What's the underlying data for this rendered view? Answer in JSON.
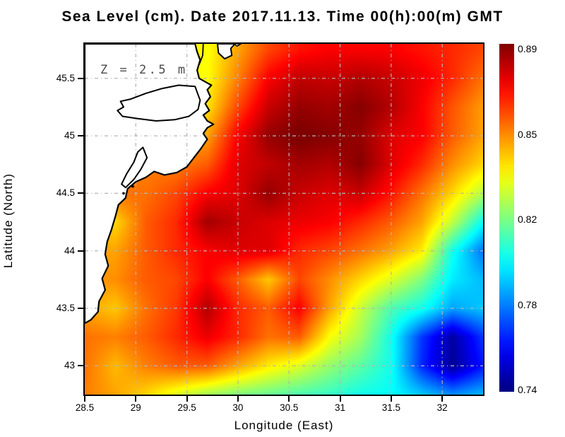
{
  "title": "Sea Level (cm). Date 2017.11.13. Time 00(h):00(m) GMT",
  "annotation": "Z = 2.5 m",
  "axes": {
    "x_label": "Longitude (East)",
    "y_label": "Latitude (North)",
    "x_tick_labels": [
      "28.5",
      "29",
      "29.5",
      "30",
      "30.5",
      "31",
      "31.5",
      "32"
    ],
    "x_tick_values": [
      28.5,
      29,
      29.5,
      30,
      30.5,
      31,
      31.5,
      32
    ],
    "y_tick_labels": [
      "45.5",
      "45",
      "44.5",
      "44",
      "43.5",
      "43"
    ],
    "y_tick_values": [
      45.5,
      45,
      44.5,
      44,
      43.5,
      43
    ]
  },
  "colorbar": {
    "tick_labels": [
      "0.89",
      "0.85",
      "0.82",
      "0.78",
      "0.74"
    ],
    "tick_values": [
      0.89,
      0.85,
      0.82,
      0.78,
      0.74
    ],
    "top_color": "#800000",
    "bottom_color": "#000080"
  },
  "chart_data": {
    "type": "heatmap",
    "title": "Sea Level (cm). Date 2017.11.13. Time 00(h):00(m) GMT",
    "xlabel": "Longitude (East)",
    "ylabel": "Latitude (North)",
    "colormap": "jet",
    "legend_position": "right-colorbar",
    "grid": "dotted 0.5 degree",
    "lon_range": [
      28.5,
      32.4
    ],
    "lat_range": [
      42.75,
      45.8
    ],
    "vmin": 0.745,
    "vmax": 0.885,
    "colorbar_ticks": [
      0.89,
      0.85,
      0.82,
      0.78,
      0.74
    ],
    "lon": [
      28.5,
      28.8,
      29.1,
      29.4,
      29.7,
      30.0,
      30.3,
      30.6,
      30.9,
      31.2,
      31.5,
      31.8,
      32.1,
      32.4
    ],
    "lat": [
      45.75,
      45.5,
      45.25,
      45.0,
      44.75,
      44.5,
      44.25,
      44.0,
      43.75,
      43.5,
      43.25,
      43.0,
      42.75
    ],
    "values": [
      [
        0.84,
        0.84,
        0.84,
        0.838,
        0.832,
        0.845,
        0.858,
        0.865,
        0.868,
        0.868,
        0.868,
        0.865,
        0.862,
        0.858
      ],
      [
        0.838,
        0.838,
        0.836,
        0.835,
        0.832,
        0.85,
        0.868,
        0.876,
        0.875,
        0.878,
        0.875,
        0.87,
        0.862,
        0.852
      ],
      [
        0.84,
        0.84,
        0.84,
        0.838,
        0.836,
        0.858,
        0.875,
        0.882,
        0.88,
        0.884,
        0.878,
        0.868,
        0.856,
        0.846
      ],
      [
        0.845,
        0.845,
        0.845,
        0.843,
        0.845,
        0.868,
        0.882,
        0.886,
        0.884,
        0.882,
        0.872,
        0.868,
        0.855,
        0.845
      ],
      [
        0.85,
        0.85,
        0.85,
        0.85,
        0.855,
        0.872,
        0.876,
        0.88,
        0.878,
        0.884,
        0.872,
        0.862,
        0.848,
        0.838
      ],
      [
        0.852,
        0.852,
        0.852,
        0.858,
        0.868,
        0.872,
        0.882,
        0.875,
        0.872,
        0.875,
        0.865,
        0.852,
        0.838,
        0.822
      ],
      [
        0.84,
        0.838,
        0.855,
        0.862,
        0.88,
        0.875,
        0.872,
        0.87,
        0.868,
        0.862,
        0.855,
        0.845,
        0.824,
        0.798
      ],
      [
        0.845,
        0.845,
        0.855,
        0.862,
        0.868,
        0.872,
        0.872,
        0.862,
        0.858,
        0.852,
        0.845,
        0.835,
        0.8,
        0.778
      ],
      [
        0.846,
        0.848,
        0.855,
        0.858,
        0.868,
        0.855,
        0.84,
        0.858,
        0.848,
        0.838,
        0.828,
        0.815,
        0.795,
        0.788
      ],
      [
        0.845,
        0.84,
        0.852,
        0.86,
        0.878,
        0.862,
        0.855,
        0.868,
        0.845,
        0.825,
        0.808,
        0.8,
        0.785,
        0.79
      ],
      [
        0.852,
        0.85,
        0.855,
        0.862,
        0.87,
        0.862,
        0.852,
        0.855,
        0.832,
        0.82,
        0.8,
        0.77,
        0.75,
        0.77
      ],
      [
        0.852,
        0.842,
        0.85,
        0.855,
        0.855,
        0.845,
        0.835,
        0.828,
        0.818,
        0.81,
        0.8,
        0.768,
        0.748,
        0.765
      ],
      [
        0.85,
        0.845,
        0.838,
        0.828,
        0.82,
        0.815,
        0.812,
        0.808,
        0.805,
        0.8,
        0.798,
        0.79,
        0.782,
        0.788
      ]
    ],
    "coastline": {
      "land": [
        [
          29.58,
          45.8
        ],
        [
          29.6,
          45.73
        ],
        [
          29.63,
          45.66
        ],
        [
          29.6,
          45.57
        ],
        [
          29.62,
          45.5
        ],
        [
          29.7,
          45.46
        ],
        [
          29.74,
          45.44
        ],
        [
          29.7,
          45.4
        ],
        [
          29.73,
          45.34
        ],
        [
          29.68,
          45.28
        ],
        [
          29.72,
          45.22
        ],
        [
          29.66,
          45.18
        ],
        [
          29.7,
          45.13
        ],
        [
          29.76,
          45.1
        ],
        [
          29.7,
          45.07
        ],
        [
          29.66,
          45.02
        ],
        [
          29.7,
          44.97
        ],
        [
          29.63,
          44.88
        ],
        [
          29.56,
          44.8
        ],
        [
          29.5,
          44.73
        ],
        [
          29.4,
          44.68
        ],
        [
          29.28,
          44.66
        ],
        [
          29.18,
          44.69
        ],
        [
          29.1,
          44.64
        ],
        [
          29.0,
          44.6
        ],
        [
          28.92,
          44.54
        ],
        [
          28.9,
          44.46
        ],
        [
          28.83,
          44.4
        ],
        [
          28.8,
          44.3
        ],
        [
          28.76,
          44.18
        ],
        [
          28.72,
          44.08
        ],
        [
          28.7,
          43.97
        ],
        [
          28.73,
          43.87
        ],
        [
          28.67,
          43.76
        ],
        [
          28.7,
          43.66
        ],
        [
          28.64,
          43.56
        ],
        [
          28.63,
          43.47
        ],
        [
          28.56,
          43.4
        ],
        [
          28.5,
          43.37
        ]
      ],
      "lagoon_a": [
        [
          29.58,
          45.43
        ],
        [
          29.42,
          45.44
        ],
        [
          29.25,
          45.41
        ],
        [
          29.1,
          45.37
        ],
        [
          28.95,
          45.32
        ],
        [
          28.85,
          45.3
        ],
        [
          28.88,
          45.25
        ],
        [
          28.82,
          45.22
        ],
        [
          28.87,
          45.17
        ],
        [
          29.02,
          45.15
        ],
        [
          29.2,
          45.13
        ],
        [
          29.38,
          45.14
        ],
        [
          29.52,
          45.17
        ],
        [
          29.61,
          45.23
        ],
        [
          29.63,
          45.31
        ],
        [
          29.6,
          45.38
        ]
      ],
      "lagoon_b": [
        [
          29.07,
          44.9
        ],
        [
          29.11,
          44.81
        ],
        [
          29.05,
          44.71
        ],
        [
          28.98,
          44.62
        ],
        [
          28.9,
          44.55
        ],
        [
          28.86,
          44.58
        ],
        [
          28.91,
          44.67
        ],
        [
          28.98,
          44.77
        ],
        [
          29.02,
          44.86
        ]
      ],
      "island": [
        [
          29.8,
          45.8
        ],
        [
          29.81,
          45.72
        ],
        [
          29.87,
          45.67
        ],
        [
          29.94,
          45.7
        ],
        [
          29.93,
          45.76
        ],
        [
          29.97,
          45.8
        ]
      ],
      "islet": [
        [
          29.99,
          45.78
        ],
        [
          30.03,
          45.8
        ],
        [
          29.96,
          45.8
        ]
      ],
      "river": [
        [
          29.66,
          45.8
        ],
        [
          29.655,
          45.7
        ],
        [
          29.62,
          45.62
        ]
      ],
      "dots": [
        [
          28.88,
          44.5
        ],
        [
          28.97,
          44.56
        ]
      ]
    },
    "layout_colors": {
      "land": "#ffffff",
      "coastline": "#000000",
      "gridline": "#b5b5b5",
      "axis": "#000000"
    }
  }
}
